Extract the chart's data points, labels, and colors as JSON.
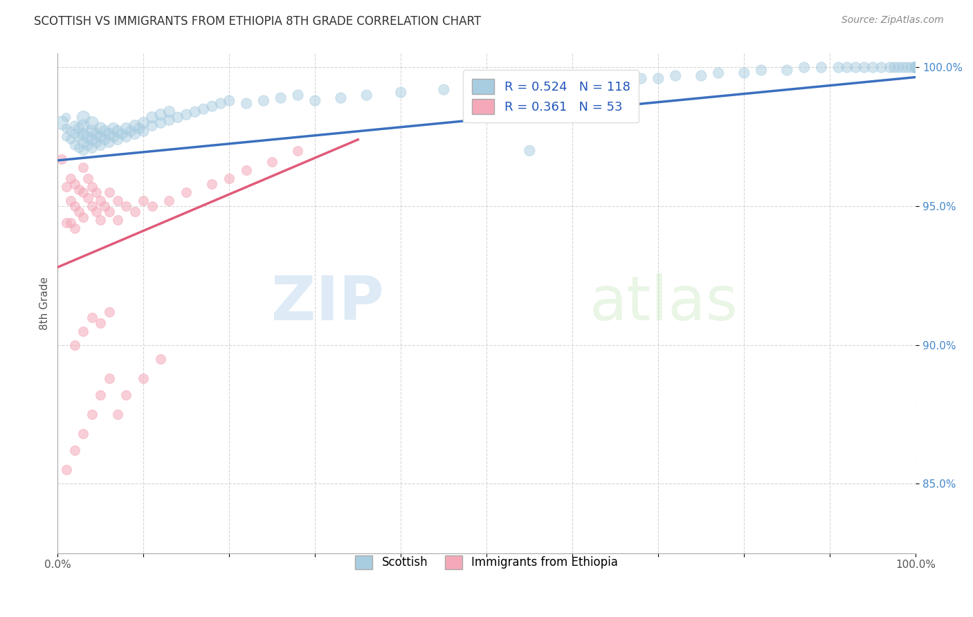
{
  "title": "SCOTTISH VS IMMIGRANTS FROM ETHIOPIA 8TH GRADE CORRELATION CHART",
  "source": "Source: ZipAtlas.com",
  "ylabel": "8th Grade",
  "xlim": [
    0.0,
    1.0
  ],
  "ylim": [
    0.825,
    1.005
  ],
  "xticks": [
    0.0,
    0.1,
    0.2,
    0.3,
    0.4,
    0.5,
    0.6,
    0.7,
    0.8,
    0.9,
    1.0
  ],
  "yticks": [
    0.85,
    0.9,
    0.95,
    1.0
  ],
  "ytick_labels": [
    "85.0%",
    "90.0%",
    "95.0%",
    "100.0%"
  ],
  "xtick_labels": [
    "0.0%",
    "",
    "",
    "",
    "",
    "",
    "",
    "",
    "",
    "",
    "100.0%"
  ],
  "blue_R": 0.524,
  "blue_N": 118,
  "pink_R": 0.361,
  "pink_N": 53,
  "blue_color": "#a8cce0",
  "pink_color": "#f4a8b8",
  "blue_line_color": "#3a6fbf",
  "pink_line_color": "#e05a7a",
  "legend_blue_color": "#a8cce0",
  "legend_pink_color": "#f4a8b8",
  "watermark_zip": "ZIP",
  "watermark_atlas": "atlas",
  "blue_scatter_x": [
    0.005,
    0.01,
    0.01,
    0.01,
    0.015,
    0.015,
    0.02,
    0.02,
    0.02,
    0.025,
    0.025,
    0.025,
    0.03,
    0.03,
    0.03,
    0.03,
    0.03,
    0.035,
    0.035,
    0.04,
    0.04,
    0.04,
    0.04,
    0.045,
    0.045,
    0.05,
    0.05,
    0.05,
    0.055,
    0.055,
    0.06,
    0.06,
    0.065,
    0.065,
    0.07,
    0.07,
    0.075,
    0.08,
    0.08,
    0.085,
    0.09,
    0.09,
    0.095,
    0.1,
    0.1,
    0.11,
    0.11,
    0.12,
    0.12,
    0.13,
    0.13,
    0.14,
    0.15,
    0.16,
    0.17,
    0.18,
    0.19,
    0.2,
    0.22,
    0.24,
    0.26,
    0.28,
    0.3,
    0.33,
    0.36,
    0.4,
    0.45,
    0.5,
    0.55,
    0.6,
    0.65,
    0.68,
    0.7,
    0.72,
    0.75,
    0.77,
    0.8,
    0.82,
    0.85,
    0.87,
    0.89,
    0.91,
    0.92,
    0.93,
    0.94,
    0.95,
    0.96,
    0.97,
    0.975,
    0.98,
    0.985,
    0.99,
    0.995,
    1.0,
    1.0,
    1.0,
    1.0,
    1.0,
    1.0,
    1.0,
    1.0,
    1.0,
    1.0,
    1.0,
    1.0,
    1.0,
    1.0,
    1.0,
    1.0,
    1.0,
    1.0,
    1.0,
    1.0,
    1.0,
    1.0,
    1.0,
    1.0,
    1.0
  ],
  "blue_scatter_y": [
    0.98,
    0.975,
    0.978,
    0.982,
    0.974,
    0.977,
    0.972,
    0.976,
    0.979,
    0.971,
    0.975,
    0.978,
    0.97,
    0.973,
    0.976,
    0.979,
    0.982,
    0.972,
    0.975,
    0.971,
    0.974,
    0.977,
    0.98,
    0.973,
    0.976,
    0.972,
    0.975,
    0.978,
    0.974,
    0.977,
    0.973,
    0.976,
    0.975,
    0.978,
    0.974,
    0.977,
    0.976,
    0.975,
    0.978,
    0.977,
    0.976,
    0.979,
    0.978,
    0.977,
    0.98,
    0.979,
    0.982,
    0.98,
    0.983,
    0.981,
    0.984,
    0.982,
    0.983,
    0.984,
    0.985,
    0.986,
    0.987,
    0.988,
    0.987,
    0.988,
    0.989,
    0.99,
    0.988,
    0.989,
    0.99,
    0.991,
    0.992,
    0.993,
    0.97,
    0.994,
    0.995,
    0.996,
    0.996,
    0.997,
    0.997,
    0.998,
    0.998,
    0.999,
    0.999,
    1.0,
    1.0,
    1.0,
    1.0,
    1.0,
    1.0,
    1.0,
    1.0,
    1.0,
    1.0,
    1.0,
    1.0,
    1.0,
    1.0,
    1.0,
    1.0,
    1.0,
    1.0,
    1.0,
    1.0,
    1.0,
    1.0,
    1.0,
    1.0,
    1.0,
    1.0,
    1.0,
    1.0,
    1.0,
    1.0,
    1.0,
    1.0,
    1.0,
    1.0,
    1.0,
    1.0,
    1.0,
    1.0,
    1.0
  ],
  "blue_scatter_sizes": [
    200,
    80,
    80,
    80,
    80,
    80,
    100,
    100,
    100,
    100,
    120,
    120,
    100,
    120,
    140,
    160,
    180,
    120,
    140,
    120,
    140,
    160,
    180,
    120,
    140,
    120,
    140,
    160,
    120,
    140,
    120,
    140,
    120,
    140,
    120,
    140,
    120,
    120,
    140,
    120,
    120,
    140,
    120,
    120,
    140,
    120,
    140,
    120,
    140,
    120,
    140,
    120,
    120,
    120,
    120,
    120,
    120,
    120,
    120,
    120,
    120,
    120,
    120,
    120,
    120,
    120,
    120,
    120,
    120,
    120,
    120,
    120,
    120,
    120,
    120,
    120,
    120,
    120,
    120,
    120,
    120,
    120,
    120,
    120,
    120,
    120,
    120,
    120,
    120,
    120,
    120,
    120,
    120,
    120,
    120,
    120,
    120,
    120,
    120,
    120,
    120,
    120,
    120,
    120,
    120,
    120,
    120,
    120,
    120,
    120,
    120,
    120,
    120,
    120,
    120,
    120,
    120,
    120
  ],
  "pink_scatter_x": [
    0.005,
    0.01,
    0.01,
    0.015,
    0.015,
    0.015,
    0.02,
    0.02,
    0.02,
    0.025,
    0.025,
    0.03,
    0.03,
    0.03,
    0.035,
    0.035,
    0.04,
    0.04,
    0.045,
    0.045,
    0.05,
    0.05,
    0.055,
    0.06,
    0.06,
    0.07,
    0.07,
    0.08,
    0.09,
    0.1,
    0.11,
    0.13,
    0.15,
    0.18,
    0.2,
    0.22,
    0.25,
    0.28,
    0.02,
    0.03,
    0.04,
    0.05,
    0.06,
    0.01,
    0.02,
    0.03,
    0.04,
    0.05,
    0.06,
    0.07,
    0.08,
    0.1,
    0.12
  ],
  "pink_scatter_y": [
    0.967,
    0.957,
    0.944,
    0.96,
    0.952,
    0.944,
    0.958,
    0.95,
    0.942,
    0.956,
    0.948,
    0.964,
    0.955,
    0.946,
    0.96,
    0.953,
    0.957,
    0.95,
    0.955,
    0.948,
    0.952,
    0.945,
    0.95,
    0.955,
    0.948,
    0.952,
    0.945,
    0.95,
    0.948,
    0.952,
    0.95,
    0.952,
    0.955,
    0.958,
    0.96,
    0.963,
    0.966,
    0.97,
    0.9,
    0.905,
    0.91,
    0.908,
    0.912,
    0.855,
    0.862,
    0.868,
    0.875,
    0.882,
    0.888,
    0.875,
    0.882,
    0.888,
    0.895
  ],
  "blue_trendline_x": [
    0.0,
    1.0
  ],
  "blue_trendline_y": [
    0.9665,
    0.9965
  ],
  "pink_trendline_x": [
    0.0,
    0.35
  ],
  "pink_trendline_y": [
    0.928,
    0.974
  ]
}
